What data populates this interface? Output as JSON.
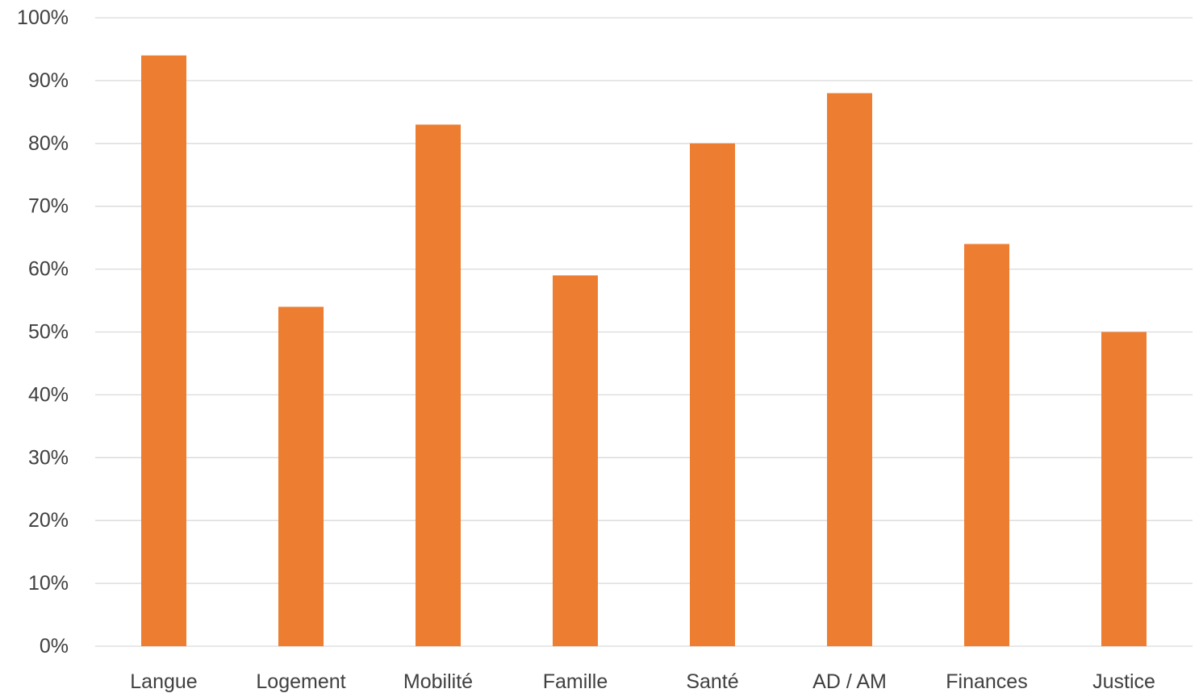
{
  "colors": {
    "bar": "#ED7D31",
    "grid": "#D9D9D9",
    "text": "#404040"
  },
  "chart_data": {
    "type": "bar",
    "title": "",
    "xlabel": "",
    "ylabel": "",
    "categories": [
      "Langue",
      "Logement",
      "Mobilité",
      "Famille",
      "Santé",
      "AD / AM",
      "Finances",
      "Justice"
    ],
    "values": [
      94,
      54,
      83,
      59,
      80,
      88,
      64,
      50
    ],
    "ylim": [
      0,
      100
    ],
    "y_ticks": [
      0,
      10,
      20,
      30,
      40,
      50,
      60,
      70,
      80,
      90,
      100
    ],
    "y_tick_labels": [
      "0%",
      "10%",
      "20%",
      "30%",
      "40%",
      "50%",
      "60%",
      "70%",
      "80%",
      "90%",
      "100%"
    ],
    "grid": true,
    "legend": "none"
  }
}
